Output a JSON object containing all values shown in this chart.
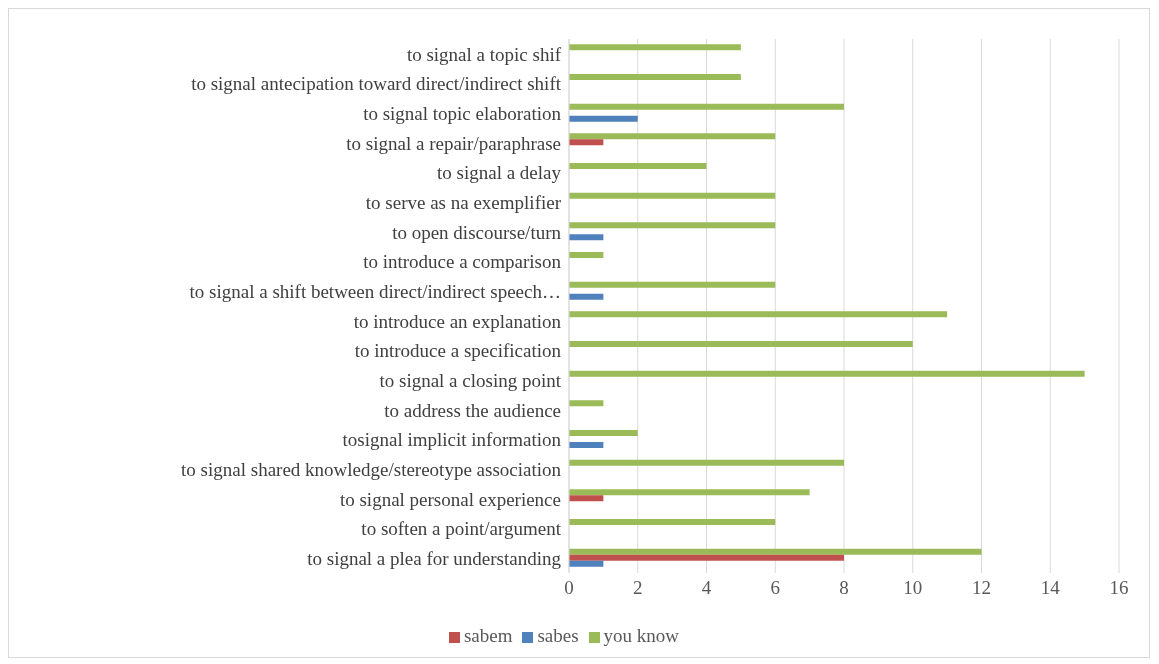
{
  "chart_data": {
    "type": "bar",
    "orientation": "horizontal",
    "categories": [
      "to signal a topic shif",
      "to signal antecipation toward direct/indirect shift",
      "to signal topic elaboration",
      "to signal a repair/paraphrase",
      "to signal a delay",
      "to serve as na exemplifier",
      "to open discourse/turn",
      "to introduce a comparison ",
      "to signal a shift between direct/indirect speech…",
      "to introduce an explanation",
      "to introduce a specification",
      "to signal a closing point",
      "to address the audience",
      "tosignal implicit information",
      "to signal shared knowledge/stereotype association",
      "to signal personal experience",
      "to soften a point/argument",
      "to signal a plea for understanding"
    ],
    "series": [
      {
        "name": "you know",
        "color": "#9bbb59",
        "values": [
          5,
          5,
          8,
          6,
          4,
          6,
          6,
          1,
          6,
          11,
          10,
          15,
          1,
          2,
          8,
          7,
          6,
          12
        ]
      },
      {
        "name": "sabem",
        "color": "#c0504d",
        "values": [
          0,
          0,
          0,
          1,
          0,
          0,
          0,
          0,
          0,
          0,
          0,
          0,
          0,
          0,
          0,
          1,
          0,
          8
        ]
      },
      {
        "name": "sabes",
        "color": "#4f81bd",
        "values": [
          0,
          0,
          2,
          0,
          0,
          0,
          1,
          0,
          1,
          0,
          0,
          0,
          0,
          1,
          0,
          0,
          0,
          1
        ]
      }
    ],
    "xlim": [
      0,
      16
    ],
    "xticks": [
      0,
      2,
      4,
      6,
      8,
      10,
      12,
      14,
      16
    ],
    "grid": "x",
    "legend": "bottom"
  }
}
